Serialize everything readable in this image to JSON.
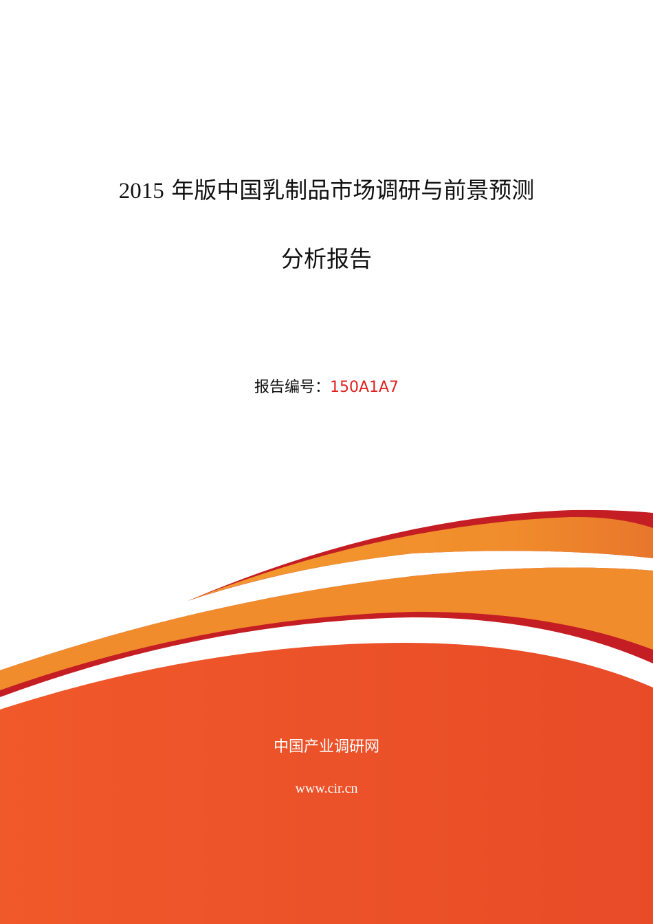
{
  "title": {
    "line1_year": "2015",
    "line1_text": "年版中国乳制品市场调研与前景预测",
    "line2": "分析报告"
  },
  "report_code": {
    "label": "报告编号：",
    "value": "150A1A7"
  },
  "footer": {
    "organization": "中国产业调研网",
    "website": "www.cir.cn"
  },
  "colors": {
    "accent_red": "#c41e24",
    "orange": "#f08c2c",
    "red_orange": "#ea5028",
    "code_red": "#e02020"
  }
}
